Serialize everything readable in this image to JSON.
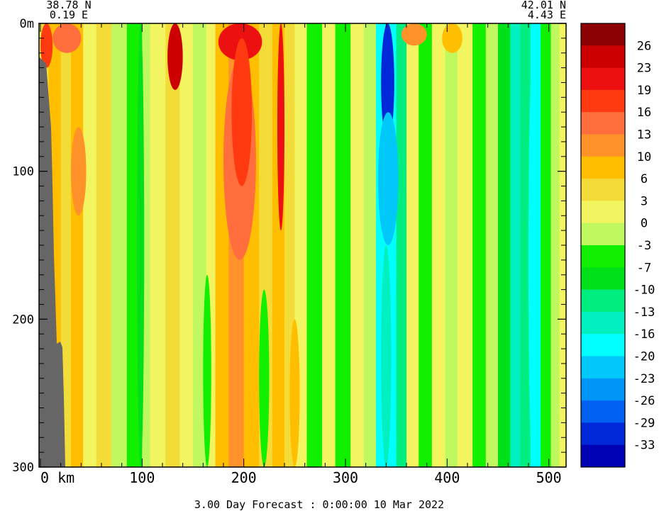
{
  "chart_data": {
    "type": "heatmap",
    "title": "",
    "footer": "3.00 Day Forecast :  0:00:00  10 Mar 2022",
    "xlabel": "km",
    "ylabel": "",
    "x_start_label": "0 km",
    "x_ticks": [
      "100",
      "200",
      "300",
      "400",
      "500"
    ],
    "x_tick_values": [
      100,
      200,
      300,
      400,
      500
    ],
    "y_ticks": [
      "0m",
      "100",
      "200",
      "300"
    ],
    "y_tick_values": [
      0,
      100,
      200,
      300
    ],
    "xlim": [
      0,
      510
    ],
    "ylim": [
      0,
      300
    ],
    "start_point": {
      "lat": "38.78 N",
      "lon": "0.19 E"
    },
    "end_point": {
      "lat": "42.01 N",
      "lon": "4.43 E"
    },
    "colorbar": {
      "levels": [
        {
          "label": "26",
          "color": "#8b0000"
        },
        {
          "label": "23",
          "color": "#cc0000"
        },
        {
          "label": "19",
          "color": "#ec1010"
        },
        {
          "label": "16",
          "color": "#ff3a10"
        },
        {
          "label": "13",
          "color": "#ff6e3c"
        },
        {
          "label": "10",
          "color": "#ff9228"
        },
        {
          "label": "6",
          "color": "#ffbe00"
        },
        {
          "label": "3",
          "color": "#f4dc38"
        },
        {
          "label": "0",
          "color": "#f2f560"
        },
        {
          "label": "-3",
          "color": "#c0f860"
        },
        {
          "label": "-7",
          "color": "#10f000"
        },
        {
          "label": "-10",
          "color": "#00e018"
        },
        {
          "label": "-13",
          "color": "#00ee80"
        },
        {
          "label": "-16",
          "color": "#00f0c0"
        },
        {
          "label": "-20",
          "color": "#00ffff"
        },
        {
          "label": "-23",
          "color": "#00c8f8"
        },
        {
          "label": "-26",
          "color": "#0096f8"
        },
        {
          "label": "-29",
          "color": "#0060f0"
        },
        {
          "label": "-33",
          "color": "#0028d8"
        },
        {
          "label": "",
          "color": "#0000b4"
        }
      ]
    },
    "land_color": "#666666",
    "bands": [
      {
        "x0": 0,
        "x1": 8,
        "value": 3
      },
      {
        "x0": 8,
        "x1": 20,
        "value": 6
      },
      {
        "x0": 20,
        "x1": 30,
        "value": 3
      },
      {
        "x0": 30,
        "x1": 42,
        "value": 6
      },
      {
        "x0": 42,
        "x1": 55,
        "value": 0
      },
      {
        "x0": 55,
        "x1": 70,
        "value": 3
      },
      {
        "x0": 70,
        "x1": 85,
        "value": -3
      },
      {
        "x0": 85,
        "x1": 100,
        "value": -7
      },
      {
        "x0": 100,
        "x1": 108,
        "value": -3
      },
      {
        "x0": 108,
        "x1": 123,
        "value": 0
      },
      {
        "x0": 123,
        "x1": 137,
        "value": 3
      },
      {
        "x0": 137,
        "x1": 150,
        "value": 0
      },
      {
        "x0": 150,
        "x1": 163,
        "value": -3
      },
      {
        "x0": 163,
        "x1": 172,
        "value": 0
      },
      {
        "x0": 172,
        "x1": 185,
        "value": 6
      },
      {
        "x0": 185,
        "x1": 200,
        "value": 10
      },
      {
        "x0": 200,
        "x1": 215,
        "value": 6
      },
      {
        "x0": 215,
        "x1": 228,
        "value": 3
      },
      {
        "x0": 228,
        "x1": 240,
        "value": 6
      },
      {
        "x0": 240,
        "x1": 250,
        "value": 3
      },
      {
        "x0": 250,
        "x1": 262,
        "value": 0
      },
      {
        "x0": 262,
        "x1": 277,
        "value": -7
      },
      {
        "x0": 277,
        "x1": 290,
        "value": 0
      },
      {
        "x0": 290,
        "x1": 305,
        "value": -7
      },
      {
        "x0": 305,
        "x1": 318,
        "value": 0
      },
      {
        "x0": 318,
        "x1": 330,
        "value": -3
      },
      {
        "x0": 330,
        "x1": 350,
        "value": -20
      },
      {
        "x0": 350,
        "x1": 360,
        "value": -13
      },
      {
        "x0": 360,
        "x1": 372,
        "value": 0
      },
      {
        "x0": 372,
        "x1": 385,
        "value": -7
      },
      {
        "x0": 385,
        "x1": 398,
        "value": 0
      },
      {
        "x0": 398,
        "x1": 410,
        "value": -3
      },
      {
        "x0": 410,
        "x1": 425,
        "value": 0
      },
      {
        "x0": 425,
        "x1": 438,
        "value": -7
      },
      {
        "x0": 438,
        "x1": 450,
        "value": -3
      },
      {
        "x0": 450,
        "x1": 462,
        "value": -10
      },
      {
        "x0": 462,
        "x1": 472,
        "value": -16
      },
      {
        "x0": 472,
        "x1": 482,
        "value": -13
      },
      {
        "x0": 482,
        "x1": 492,
        "value": -20
      },
      {
        "x0": 492,
        "x1": 502,
        "value": -7
      },
      {
        "x0": 502,
        "x1": 510,
        "value": -3
      }
    ],
    "features": [
      {
        "x0": 125,
        "x1": 140,
        "y0": 0,
        "y1": 45,
        "value": 23
      },
      {
        "x0": 175,
        "x1": 218,
        "y0": 0,
        "y1": 25,
        "value": 19
      },
      {
        "x0": 180,
        "x1": 212,
        "y0": 25,
        "y1": 160,
        "value": 13
      },
      {
        "x0": 188,
        "x1": 208,
        "y0": 10,
        "y1": 110,
        "value": 16
      },
      {
        "x0": 233,
        "x1": 240,
        "y0": 0,
        "y1": 140,
        "value": 19
      },
      {
        "x0": 30,
        "x1": 45,
        "y0": 70,
        "y1": 130,
        "value": 10
      },
      {
        "x0": 0,
        "x1": 12,
        "y0": 0,
        "y1": 30,
        "value": 16
      },
      {
        "x0": 12,
        "x1": 40,
        "y0": 0,
        "y1": 20,
        "value": 13
      },
      {
        "x0": 335,
        "x1": 348,
        "y0": 0,
        "y1": 80,
        "value": -33
      },
      {
        "x0": 332,
        "x1": 352,
        "y0": 60,
        "y1": 150,
        "value": -23
      },
      {
        "x0": 335,
        "x1": 345,
        "y0": 150,
        "y1": 300,
        "value": -16
      },
      {
        "x0": 355,
        "x1": 380,
        "y0": 0,
        "y1": 15,
        "value": 10
      },
      {
        "x0": 395,
        "x1": 415,
        "y0": 0,
        "y1": 20,
        "value": 6
      },
      {
        "x0": 245,
        "x1": 255,
        "y0": 200,
        "y1": 300,
        "value": 6
      },
      {
        "x0": 95,
        "x1": 102,
        "y0": 0,
        "y1": 300,
        "value": -10
      },
      {
        "x0": 160,
        "x1": 168,
        "y0": 170,
        "y1": 300,
        "value": -7
      },
      {
        "x0": 215,
        "x1": 225,
        "y0": 180,
        "y1": 300,
        "value": -7
      },
      {
        "x0": 480,
        "x1": 488,
        "y0": 20,
        "y1": 300,
        "value": -20
      },
      {
        "x0": 30,
        "x1": 35,
        "y0": 240,
        "y1": 300,
        "value": 6
      }
    ]
  }
}
